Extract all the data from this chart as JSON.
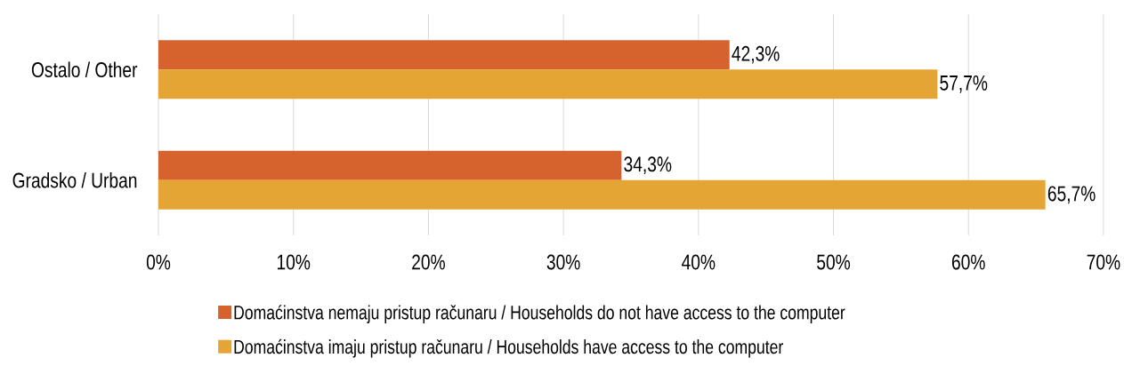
{
  "chart_data": {
    "type": "bar",
    "orientation": "horizontal",
    "categories": [
      "Ostalo / Other",
      "Gradsko / Urban"
    ],
    "series": [
      {
        "name": "Domaćinstva nemaju pristup računaru / Households do not have access to the computer",
        "color": "#d6622e",
        "values": [
          42.3,
          34.3
        ],
        "value_labels": [
          "42,3%",
          "34,3%"
        ]
      },
      {
        "name": "Domaćinstva imaju pristup računaru / Households have access to the computer",
        "color": "#e5a535",
        "values": [
          57.7,
          65.7
        ],
        "value_labels": [
          "57,7%",
          "65,7%"
        ]
      }
    ],
    "xlim": [
      0,
      70
    ],
    "xticks": [
      {
        "value": 0,
        "label": "0%"
      },
      {
        "value": 10,
        "label": "10%"
      },
      {
        "value": 20,
        "label": "20%"
      },
      {
        "value": 30,
        "label": "30%"
      },
      {
        "value": 40,
        "label": "40%"
      },
      {
        "value": 50,
        "label": "50%"
      },
      {
        "value": 60,
        "label": "60%"
      },
      {
        "value": 70,
        "label": "70%"
      }
    ],
    "grid": "x",
    "legend": "bottom"
  }
}
